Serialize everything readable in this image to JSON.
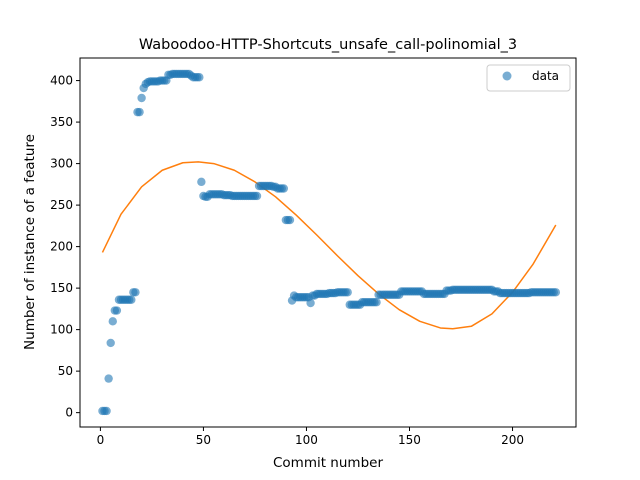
{
  "chart_data": {
    "type": "scatter",
    "title": "Waboodoo-HTTP-Shortcuts_unsafe_call-polinomial_3",
    "xlabel": "Commit number",
    "ylabel": "Number of instance of a feature",
    "xlim": [
      -9.9,
      230.8
    ],
    "ylim": [
      -17.3,
      427.2
    ],
    "xticks": [
      0,
      50,
      100,
      150,
      200
    ],
    "yticks": [
      0,
      50,
      100,
      150,
      200,
      250,
      300,
      350,
      400
    ],
    "grid": false,
    "legend": {
      "position": "top-right",
      "entries": [
        "data"
      ]
    },
    "colors": {
      "data": "#1f77b4",
      "fit": "#ff7f0e"
    },
    "series": [
      {
        "name": "data",
        "kind": "scatter",
        "points": [
          [
            1,
            2
          ],
          [
            2,
            2
          ],
          [
            3,
            2
          ],
          [
            4,
            41
          ],
          [
            5,
            84
          ],
          [
            6,
            110
          ],
          [
            7,
            123
          ],
          [
            8,
            123
          ],
          [
            9,
            136
          ],
          [
            10,
            136
          ],
          [
            11,
            136
          ],
          [
            12,
            136
          ],
          [
            13,
            136
          ],
          [
            14,
            136
          ],
          [
            15,
            136
          ],
          [
            16,
            145
          ],
          [
            17,
            145
          ],
          [
            18,
            362
          ],
          [
            19,
            362
          ],
          [
            20,
            379
          ],
          [
            21,
            391
          ],
          [
            22,
            396
          ],
          [
            23,
            398
          ],
          [
            24,
            399
          ],
          [
            25,
            399
          ],
          [
            26,
            399
          ],
          [
            27,
            399
          ],
          [
            28,
            399
          ],
          [
            29,
            400
          ],
          [
            30,
            400
          ],
          [
            31,
            400
          ],
          [
            32,
            400
          ],
          [
            33,
            407
          ],
          [
            34,
            407
          ],
          [
            35,
            408
          ],
          [
            36,
            408
          ],
          [
            37,
            408
          ],
          [
            38,
            408
          ],
          [
            39,
            408
          ],
          [
            40,
            408
          ],
          [
            41,
            408
          ],
          [
            42,
            408
          ],
          [
            43,
            408
          ],
          [
            44,
            406
          ],
          [
            45,
            404
          ],
          [
            46,
            404
          ],
          [
            47,
            404
          ],
          [
            48,
            404
          ],
          [
            49,
            278
          ],
          [
            50,
            261
          ],
          [
            51,
            260
          ],
          [
            52,
            260
          ],
          [
            53,
            263
          ],
          [
            54,
            263
          ],
          [
            55,
            263
          ],
          [
            56,
            263
          ],
          [
            57,
            263
          ],
          [
            58,
            263
          ],
          [
            59,
            263
          ],
          [
            60,
            262
          ],
          [
            61,
            262
          ],
          [
            62,
            262
          ],
          [
            63,
            262
          ],
          [
            64,
            261
          ],
          [
            65,
            261
          ],
          [
            66,
            261
          ],
          [
            67,
            261
          ],
          [
            68,
            261
          ],
          [
            69,
            261
          ],
          [
            70,
            261
          ],
          [
            71,
            261
          ],
          [
            72,
            261
          ],
          [
            73,
            261
          ],
          [
            74,
            261
          ],
          [
            75,
            261
          ],
          [
            76,
            261
          ],
          [
            77,
            273
          ],
          [
            78,
            273
          ],
          [
            79,
            273
          ],
          [
            80,
            273
          ],
          [
            81,
            273
          ],
          [
            82,
            273
          ],
          [
            83,
            273
          ],
          [
            84,
            272
          ],
          [
            85,
            272
          ],
          [
            86,
            270
          ],
          [
            87,
            270
          ],
          [
            88,
            270
          ],
          [
            89,
            270
          ],
          [
            90,
            232
          ],
          [
            91,
            232
          ],
          [
            92,
            232
          ],
          [
            93,
            135
          ],
          [
            94,
            141
          ],
          [
            95,
            139
          ],
          [
            96,
            139
          ],
          [
            97,
            139
          ],
          [
            98,
            139
          ],
          [
            99,
            139
          ],
          [
            100,
            139
          ],
          [
            101,
            139
          ],
          [
            102,
            132
          ],
          [
            103,
            141
          ],
          [
            104,
            141
          ],
          [
            105,
            143
          ],
          [
            106,
            143
          ],
          [
            107,
            143
          ],
          [
            108,
            143
          ],
          [
            109,
            143
          ],
          [
            110,
            143
          ],
          [
            111,
            144
          ],
          [
            112,
            144
          ],
          [
            113,
            144
          ],
          [
            114,
            144
          ],
          [
            115,
            145
          ],
          [
            116,
            145
          ],
          [
            117,
            145
          ],
          [
            118,
            145
          ],
          [
            119,
            145
          ],
          [
            120,
            145
          ],
          [
            121,
            130
          ],
          [
            122,
            130
          ],
          [
            123,
            130
          ],
          [
            124,
            130
          ],
          [
            125,
            130
          ],
          [
            126,
            130
          ],
          [
            127,
            133
          ],
          [
            128,
            133
          ],
          [
            129,
            133
          ],
          [
            130,
            133
          ],
          [
            131,
            133
          ],
          [
            132,
            133
          ],
          [
            133,
            133
          ],
          [
            134,
            133
          ],
          [
            135,
            142
          ],
          [
            136,
            142
          ],
          [
            137,
            142
          ],
          [
            138,
            142
          ],
          [
            139,
            142
          ],
          [
            140,
            142
          ],
          [
            141,
            142
          ],
          [
            142,
            142
          ],
          [
            143,
            142
          ],
          [
            144,
            142
          ],
          [
            145,
            142
          ],
          [
            146,
            146
          ],
          [
            147,
            146
          ],
          [
            148,
            146
          ],
          [
            149,
            146
          ],
          [
            150,
            146
          ],
          [
            151,
            146
          ],
          [
            152,
            146
          ],
          [
            153,
            146
          ],
          [
            154,
            146
          ],
          [
            155,
            146
          ],
          [
            156,
            146
          ],
          [
            157,
            143
          ],
          [
            158,
            143
          ],
          [
            159,
            143
          ],
          [
            160,
            143
          ],
          [
            161,
            143
          ],
          [
            162,
            143
          ],
          [
            163,
            143
          ],
          [
            164,
            143
          ],
          [
            165,
            143
          ],
          [
            166,
            143
          ],
          [
            167,
            143
          ],
          [
            168,
            147
          ],
          [
            169,
            147
          ],
          [
            170,
            147
          ],
          [
            171,
            148
          ],
          [
            172,
            148
          ],
          [
            173,
            148
          ],
          [
            174,
            148
          ],
          [
            175,
            148
          ],
          [
            176,
            148
          ],
          [
            177,
            148
          ],
          [
            178,
            148
          ],
          [
            179,
            148
          ],
          [
            180,
            148
          ],
          [
            181,
            148
          ],
          [
            182,
            148
          ],
          [
            183,
            148
          ],
          [
            184,
            148
          ],
          [
            185,
            148
          ],
          [
            186,
            148
          ],
          [
            187,
            148
          ],
          [
            188,
            148
          ],
          [
            189,
            148
          ],
          [
            190,
            148
          ],
          [
            191,
            146
          ],
          [
            192,
            146
          ],
          [
            193,
            146
          ],
          [
            194,
            144
          ],
          [
            195,
            144
          ],
          [
            196,
            144
          ],
          [
            197,
            144
          ],
          [
            198,
            144
          ],
          [
            199,
            144
          ],
          [
            200,
            144
          ],
          [
            201,
            144
          ],
          [
            202,
            144
          ],
          [
            203,
            144
          ],
          [
            204,
            144
          ],
          [
            205,
            144
          ],
          [
            206,
            144
          ],
          [
            207,
            144
          ],
          [
            208,
            144
          ],
          [
            209,
            145
          ],
          [
            210,
            145
          ],
          [
            211,
            145
          ],
          [
            212,
            145
          ],
          [
            213,
            145
          ],
          [
            214,
            145
          ],
          [
            215,
            145
          ],
          [
            216,
            145
          ],
          [
            217,
            145
          ],
          [
            218,
            145
          ],
          [
            219,
            145
          ],
          [
            220,
            145
          ],
          [
            221,
            145
          ]
        ]
      },
      {
        "kind": "line",
        "points": [
          [
            1,
            193
          ],
          [
            10,
            239
          ],
          [
            20,
            272
          ],
          [
            30,
            292
          ],
          [
            40,
            301
          ],
          [
            47.5,
            302
          ],
          [
            55,
            300
          ],
          [
            65,
            292
          ],
          [
            75,
            278
          ],
          [
            85,
            260
          ],
          [
            95,
            238
          ],
          [
            105,
            214
          ],
          [
            115,
            189
          ],
          [
            125,
            165
          ],
          [
            135,
            143
          ],
          [
            145,
            124
          ],
          [
            155,
            110
          ],
          [
            165,
            102
          ],
          [
            171,
            101
          ],
          [
            180,
            104
          ],
          [
            190,
            119
          ],
          [
            200,
            145
          ],
          [
            210,
            179
          ],
          [
            221,
            226
          ]
        ]
      }
    ]
  }
}
